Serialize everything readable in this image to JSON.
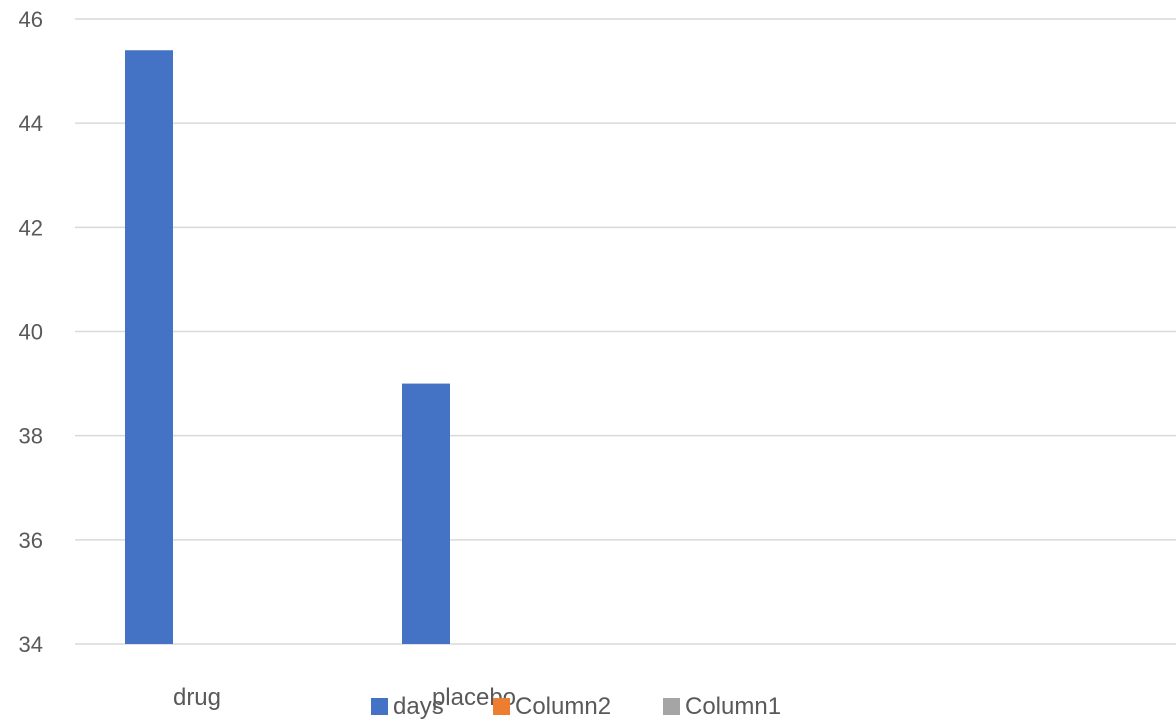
{
  "chart_data": {
    "type": "bar",
    "title": "",
    "xlabel": "",
    "ylabel": "",
    "categories": [
      "drug",
      "placebo"
    ],
    "series": [
      {
        "name": "days",
        "values": [
          45.4,
          39.0
        ],
        "color": "#4472c4"
      },
      {
        "name": "Column2",
        "values": [
          null,
          null
        ],
        "color": "#ed7d31"
      },
      {
        "name": "Column1",
        "values": [
          null,
          null
        ],
        "color": "#a5a5a5"
      }
    ],
    "ylim": [
      34,
      46
    ],
    "yticks": [
      34,
      36,
      38,
      40,
      42,
      44,
      46
    ],
    "grid": true,
    "legend_position": "bottom"
  }
}
